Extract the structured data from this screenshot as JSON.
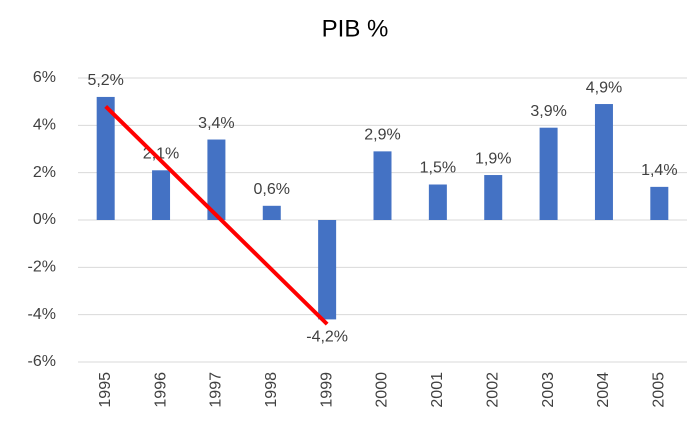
{
  "chart_data": {
    "type": "bar",
    "title": "PIB %",
    "categories": [
      "1995",
      "1996",
      "1997",
      "1998",
      "1999",
      "2000",
      "2001",
      "2002",
      "2003",
      "2004",
      "2005"
    ],
    "values": [
      5.2,
      2.1,
      3.4,
      0.6,
      -4.2,
      2.9,
      1.5,
      1.9,
      3.9,
      4.9,
      1.4
    ],
    "value_labels": [
      "5,2%",
      "2,1%",
      "3,4%",
      "0,6%",
      "-4,2%",
      "2,9%",
      "1,5%",
      "1,9%",
      "3,9%",
      "4,9%",
      "1,4%"
    ],
    "color": "#4472c4",
    "ylim": [
      -6,
      6
    ],
    "yticks": [
      {
        "value": -6,
        "label": "-6%"
      },
      {
        "value": -4,
        "label": "-4%"
      },
      {
        "value": -2,
        "label": "-2%"
      },
      {
        "value": 0,
        "label": "0%"
      },
      {
        "value": 2,
        "label": "2%"
      },
      {
        "value": 4,
        "label": "4%"
      },
      {
        "value": 6,
        "label": "6%"
      }
    ],
    "grid": true,
    "trend_line": {
      "color": "#ff0000",
      "x": [
        "1995",
        "1999"
      ],
      "values": [
        4.8,
        -4.4
      ]
    }
  }
}
